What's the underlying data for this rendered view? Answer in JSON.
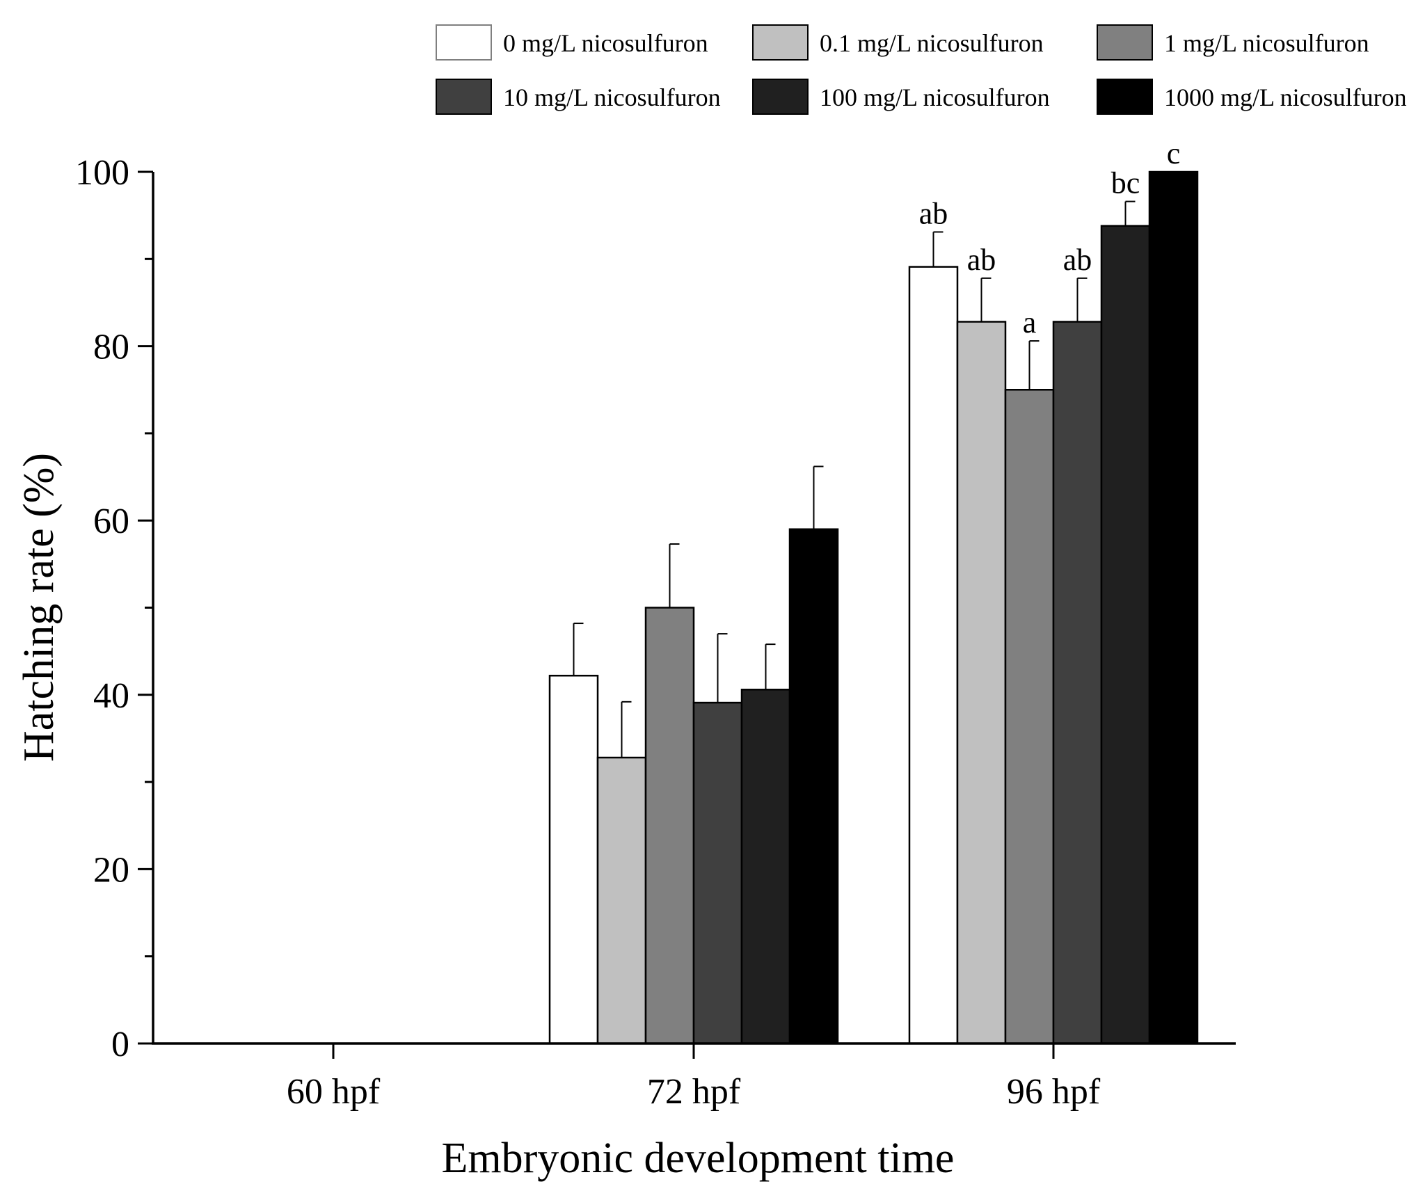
{
  "chart_data": {
    "type": "bar",
    "title": "",
    "xlabel": "Embryonic development time",
    "ylabel": "Hatching rate (%)",
    "ylim": [
      0,
      100
    ],
    "yticks": [
      0,
      20,
      40,
      60,
      80,
      100
    ],
    "yticks_minor": [
      10,
      30,
      50,
      70,
      90
    ],
    "categories": [
      "60 hpf",
      "72 hpf",
      "96 hpf"
    ],
    "series": [
      {
        "name": "0 mg/L nicosulfuron",
        "color": "#ffffff",
        "values": [
          0,
          42.2,
          89.1
        ],
        "errors": [
          0,
          6.0,
          4.0
        ],
        "labels": [
          "",
          "",
          "ab"
        ]
      },
      {
        "name": "0.1 mg/L nicosulfuron",
        "color": "#c0c0c0",
        "values": [
          0,
          32.8,
          82.8
        ],
        "errors": [
          0,
          6.4,
          5.0
        ],
        "labels": [
          "",
          "",
          "ab"
        ]
      },
      {
        "name": "1 mg/L nicosulfuron",
        "color": "#808080",
        "values": [
          0,
          50.0,
          75.0
        ],
        "errors": [
          0,
          7.3,
          5.6
        ],
        "labels": [
          "",
          "",
          "a"
        ]
      },
      {
        "name": "10 mg/L nicosulfuron",
        "color": "#404040",
        "values": [
          0,
          39.1,
          82.8
        ],
        "errors": [
          0,
          7.9,
          5.0
        ],
        "labels": [
          "",
          "",
          "ab"
        ]
      },
      {
        "name": "100 mg/L nicosulfuron",
        "color": "#202020",
        "values": [
          0,
          40.6,
          93.8
        ],
        "errors": [
          0,
          5.2,
          2.8
        ],
        "labels": [
          "",
          "",
          "bc"
        ]
      },
      {
        "name": "1000 mg/L nicosulfuron",
        "color": "#000000",
        "values": [
          0,
          59.0,
          100.0
        ],
        "errors": [
          0,
          7.2,
          0
        ],
        "labels": [
          "",
          "",
          "c"
        ]
      }
    ],
    "legend_position": "top-right",
    "grid": false
  }
}
